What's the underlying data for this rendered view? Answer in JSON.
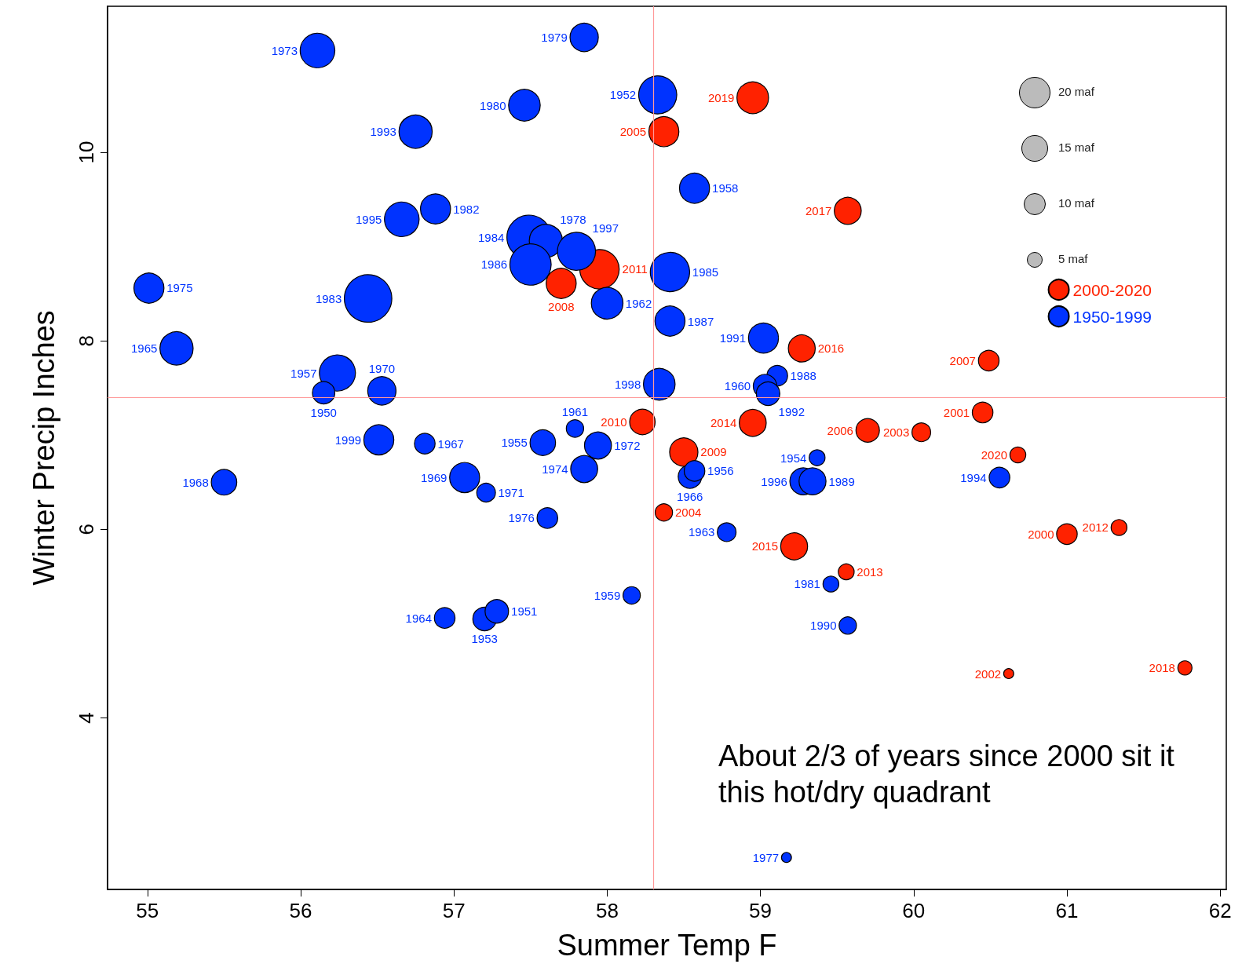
{
  "chart_data": {
    "type": "bubble",
    "xlabel": "Summer Temp F",
    "ylabel": "Winter Precip Inches",
    "xlim": [
      54.74,
      62.04
    ],
    "xticks": [
      55,
      56,
      57,
      58,
      59,
      60,
      61,
      62
    ],
    "ylim": [
      2.18,
      11.55
    ],
    "yticks": [
      4,
      6,
      8,
      10
    ],
    "grid": false,
    "legend": "top right",
    "marker": "circle",
    "size_legend": [
      {
        "value": 20,
        "label": "20 maf"
      },
      {
        "value": 15,
        "label": "15 maf"
      },
      {
        "value": 10,
        "label": "10 maf"
      },
      {
        "value": 5,
        "label": "5 maf"
      }
    ],
    "ref_lines": [
      {
        "axis": "x",
        "value": 58.3,
        "label": null,
        "color": "#ff9999"
      },
      {
        "axis": "y",
        "value": 7.4,
        "label": null,
        "color": "#ff9999"
      }
    ],
    "annotations": [
      "About 2/3 of years since 2000 sit it this hot/dry quadrant",
      {
        "text": "2019",
        "x": 58.95,
        "y": 10.58
      },
      {
        "text": "2005",
        "x": 58.37,
        "y": 10.22
      },
      {
        "text": "2017",
        "x": 59.57,
        "y": 9.38
      },
      {
        "text": "2011",
        "x": 57.95,
        "y": 8.76
      },
      {
        "text": "2008",
        "x": 57.7,
        "y": 8.61
      },
      {
        "text": "2016",
        "x": 59.27,
        "y": 7.92
      },
      {
        "text": "2007",
        "x": 60.49,
        "y": 7.79
      },
      {
        "text": "2003",
        "x": 60.05,
        "y": 7.03
      },
      {
        "text": "2001",
        "x": 60.45,
        "y": 7.24
      },
      {
        "text": "2006",
        "x": 59.7,
        "y": 7.05
      },
      {
        "text": "2010",
        "x": 58.23,
        "y": 7.14
      },
      {
        "text": "2014",
        "x": 58.95,
        "y": 7.13
      },
      {
        "text": "2009",
        "x": 58.5,
        "y": 6.82
      },
      {
        "text": "2020",
        "x": 60.68,
        "y": 6.79
      },
      {
        "text": "2004",
        "x": 58.37,
        "y": 6.18
      },
      {
        "text": "2000",
        "x": 61.0,
        "y": 5.95
      },
      {
        "text": "2012",
        "x": 61.34,
        "y": 6.02
      },
      {
        "text": "2015",
        "x": 59.22,
        "y": 5.82
      },
      {
        "text": "2013",
        "x": 59.56,
        "y": 5.55
      },
      {
        "text": "2002",
        "x": 60.62,
        "y": 4.47
      },
      {
        "text": "2018",
        "x": 61.77,
        "y": 4.53
      },
      {
        "text": "1973",
        "x": 56.11,
        "y": 11.08
      },
      {
        "text": "1979",
        "x": 57.85,
        "y": 11.22
      },
      {
        "text": "1952",
        "x": 58.33,
        "y": 10.61
      },
      {
        "text": "1980",
        "x": 57.46,
        "y": 10.5
      },
      {
        "text": "1993",
        "x": 56.75,
        "y": 10.22
      },
      {
        "text": "1958",
        "x": 58.57,
        "y": 9.62
      },
      {
        "text": "1995",
        "x": 56.66,
        "y": 9.29
      },
      {
        "text": "1982",
        "x": 56.88,
        "y": 9.4
      },
      {
        "text": "1984",
        "x": 57.49,
        "y": 9.1
      },
      {
        "text": "1978",
        "x": 57.6,
        "y": 9.06
      },
      {
        "text": "1997",
        "x": 57.8,
        "y": 8.95
      },
      {
        "text": "1985",
        "x": 58.41,
        "y": 8.73
      },
      {
        "text": "1975",
        "x": 55.01,
        "y": 8.56
      },
      {
        "text": "1983",
        "x": 56.44,
        "y": 8.45
      },
      {
        "text": "1986",
        "x": 57.5,
        "y": 8.81
      },
      {
        "text": "1962",
        "x": 58.0,
        "y": 8.4
      },
      {
        "text": "1987",
        "x": 58.41,
        "y": 8.21
      },
      {
        "text": "1965",
        "x": 55.19,
        "y": 7.92
      },
      {
        "text": "1991",
        "x": 59.02,
        "y": 8.03
      },
      {
        "text": "1988",
        "x": 59.11,
        "y": 7.63
      },
      {
        "text": "1957",
        "x": 56.24,
        "y": 7.66
      },
      {
        "text": "1970",
        "x": 56.53,
        "y": 7.47
      },
      {
        "text": "1960",
        "x": 59.03,
        "y": 7.52
      },
      {
        "text": "1992",
        "x": 59.05,
        "y": 7.44
      },
      {
        "text": "1998",
        "x": 58.34,
        "y": 7.54
      },
      {
        "text": "1950",
        "x": 56.15,
        "y": 7.45
      },
      {
        "text": "1967",
        "x": 56.81,
        "y": 6.91
      },
      {
        "text": "1999",
        "x": 56.51,
        "y": 6.95
      },
      {
        "text": "1955",
        "x": 57.58,
        "y": 6.92
      },
      {
        "text": "1961",
        "x": 57.79,
        "y": 7.07
      },
      {
        "text": "1972",
        "x": 57.94,
        "y": 6.89
      },
      {
        "text": "1974",
        "x": 57.85,
        "y": 6.64
      },
      {
        "text": "1966",
        "x": 58.54,
        "y": 6.56
      },
      {
        "text": "1956",
        "x": 58.57,
        "y": 6.62
      },
      {
        "text": "1954",
        "x": 59.37,
        "y": 6.76
      },
      {
        "text": "1968",
        "x": 55.5,
        "y": 6.5
      },
      {
        "text": "1969",
        "x": 57.07,
        "y": 6.55
      },
      {
        "text": "1971",
        "x": 57.21,
        "y": 6.39
      },
      {
        "text": "1996",
        "x": 59.28,
        "y": 6.51
      },
      {
        "text": "1989",
        "x": 59.34,
        "y": 6.51
      },
      {
        "text": "1994",
        "x": 60.56,
        "y": 6.55
      },
      {
        "text": "1976",
        "x": 57.61,
        "y": 6.12
      },
      {
        "text": "1963",
        "x": 58.78,
        "y": 5.97
      },
      {
        "text": "1959",
        "x": 58.16,
        "y": 5.3
      },
      {
        "text": "1981",
        "x": 59.46,
        "y": 5.42
      },
      {
        "text": "1964",
        "x": 56.94,
        "y": 5.06
      },
      {
        "text": "1953",
        "x": 57.2,
        "y": 5.05
      },
      {
        "text": "1951",
        "x": 57.28,
        "y": 5.13
      },
      {
        "text": "1990",
        "x": 59.57,
        "y": 4.98
      },
      {
        "text": "1977",
        "x": 59.17,
        "y": 2.52
      }
    ],
    "series": [
      {
        "name": "2000-2020",
        "color": "#ff2200",
        "x": [
          58.95,
          58.37,
          59.57,
          57.95,
          57.7,
          59.27,
          60.49,
          60.05,
          60.45,
          59.7,
          58.23,
          58.95,
          58.5,
          60.68,
          58.37,
          61.0,
          61.34,
          59.22,
          59.56,
          60.62,
          61.77
        ],
        "values": [
          10.58,
          10.22,
          9.38,
          8.76,
          8.61,
          7.92,
          7.79,
          7.03,
          7.24,
          7.05,
          7.14,
          7.13,
          6.82,
          6.79,
          6.18,
          5.95,
          6.02,
          5.82,
          5.55,
          4.47,
          4.53
        ],
        "sizes": [
          20,
          18,
          14.5,
          31,
          18,
          14.5,
          8.5,
          7,
          8.5,
          11,
          13,
          14.5,
          16,
          5,
          6,
          8.5,
          5,
          14.5,
          5,
          2,
          4
        ]
      },
      {
        "name": "1950-1999",
        "color": "#0033ff",
        "x": [
          56.11,
          57.85,
          58.33,
          57.46,
          56.75,
          58.57,
          56.66,
          56.88,
          57.49,
          57.6,
          57.8,
          58.41,
          55.01,
          56.44,
          57.5,
          58.0,
          58.41,
          55.19,
          59.02,
          59.11,
          56.24,
          56.53,
          59.03,
          59.05,
          58.34,
          56.15,
          56.81,
          56.51,
          57.58,
          57.79,
          57.94,
          57.85,
          58.54,
          58.57,
          59.37,
          55.5,
          57.07,
          57.21,
          59.28,
          59.34,
          60.56,
          57.61,
          58.78,
          58.16,
          59.46,
          56.94,
          57.2,
          57.28,
          59.57,
          59.17
        ],
        "values": [
          11.08,
          11.22,
          10.61,
          10.5,
          10.22,
          9.62,
          9.29,
          9.4,
          9.1,
          9.06,
          8.95,
          8.73,
          8.56,
          8.45,
          8.81,
          8.4,
          8.21,
          7.92,
          8.03,
          7.63,
          7.66,
          7.47,
          7.52,
          7.44,
          7.54,
          7.45,
          6.91,
          6.95,
          6.92,
          7.07,
          6.89,
          6.64,
          6.56,
          6.62,
          6.76,
          6.5,
          6.55,
          6.39,
          6.51,
          6.51,
          6.55,
          6.12,
          5.97,
          5.3,
          5.42,
          5.06,
          5.05,
          5.13,
          4.98,
          2.52
        ],
        "sizes": [
          24,
          16,
          29,
          20,
          22,
          18,
          24,
          18,
          39,
          22,
          29,
          31,
          18,
          45,
          34,
          20,
          18,
          22,
          18,
          8.5,
          26,
          16,
          11,
          11,
          20,
          10,
          8.5,
          18,
          13,
          6,
          14.5,
          14.5,
          11,
          8.5,
          5,
          13,
          18,
          7,
          14.5,
          14.5,
          8.5,
          8.5,
          7,
          6,
          5,
          8.5,
          11,
          11,
          6,
          2
        ]
      }
    ]
  }
}
